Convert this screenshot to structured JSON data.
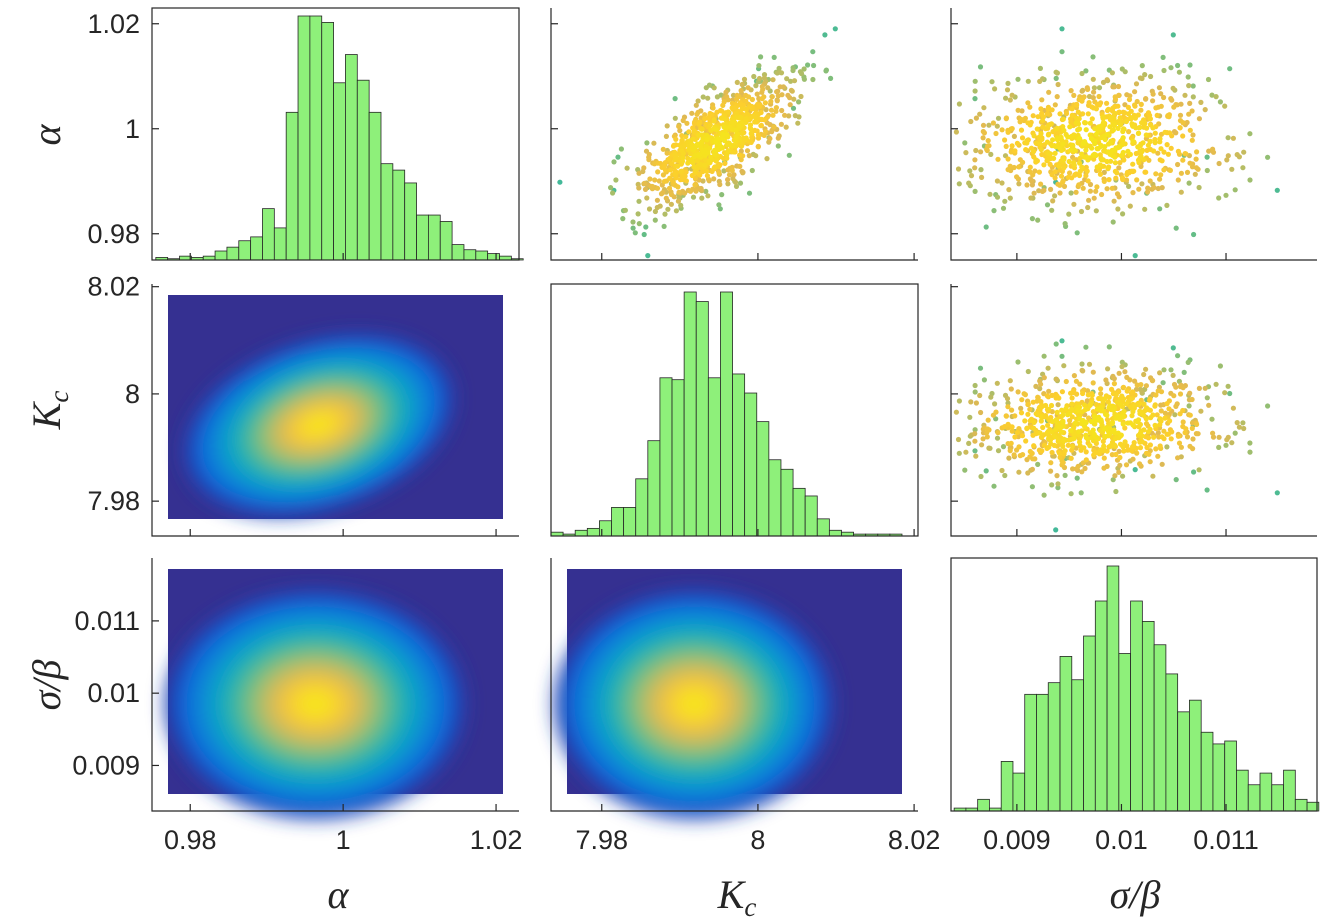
{
  "figure": {
    "type": "corner-plot",
    "description_of_layout": "3x3 matrix: histograms on diagonal, scatter above, density contours below"
  },
  "chart_data": {
    "type": "corner",
    "parameters": [
      {
        "key": "alpha",
        "label_main": "α",
        "label_sub": "",
        "range": [
          0.975,
          1.023
        ],
        "ticks": [
          0.98,
          1,
          1.02
        ],
        "tick_labels": [
          "0.98",
          "1",
          "1.02"
        ],
        "mean": 0.9975,
        "sd": 0.0062
      },
      {
        "key": "Kc",
        "label_main": "K",
        "label_sub": "c",
        "range": [
          7.9735,
          8.0205
        ],
        "ticks": [
          7.98,
          8,
          8.02
        ],
        "tick_labels": [
          "7.98",
          "8",
          "8.02"
        ],
        "mean": 7.9945,
        "sd": 0.0048
      },
      {
        "key": "sigma_beta",
        "label_main": "σ/β",
        "label_sub": "",
        "range": [
          0.00837,
          0.01187
        ],
        "ticks": [
          0.009,
          0.01,
          0.011
        ],
        "tick_labels": [
          "0.009",
          "0.01",
          "0.011"
        ],
        "mean": 0.00975,
        "sd": 0.00058
      }
    ],
    "histograms": {
      "alpha": {
        "bin_start": 0.9755,
        "bin_width": 0.00155,
        "counts": [
          2,
          1,
          3,
          2,
          3,
          7,
          10,
          15,
          18,
          40,
          25,
          115,
          190,
          190,
          185,
          138,
          160,
          140,
          115,
          75,
          70,
          60,
          35,
          35,
          30,
          12,
          8,
          7,
          5,
          3,
          1,
          1
        ]
      },
      "Kc": {
        "bin_start": 7.9735,
        "bin_width": 0.00155,
        "counts": [
          2,
          1,
          3,
          4,
          8,
          15,
          15,
          30,
          50,
          83,
          82,
          128,
          123,
          83,
          128,
          85,
          75,
          60,
          40,
          35,
          25,
          21,
          9,
          3,
          2,
          1,
          1,
          1,
          1
        ]
      },
      "sigma_beta": {
        "bin_start": 0.0084,
        "bin_width": 0.0001125,
        "counts": [
          1,
          1,
          4,
          1,
          17,
          13,
          40,
          40,
          44,
          53,
          45,
          60,
          72,
          84,
          54,
          72,
          65,
          57,
          47,
          34,
          38,
          27,
          23,
          24,
          14,
          9,
          13,
          9,
          14,
          4,
          3,
          2,
          2
        ]
      }
    },
    "scatter": {
      "n_points": 900,
      "seed": 7,
      "colormap": "parula (density-colored points)"
    },
    "density": {
      "colormap": "parula",
      "levels": 12
    }
  }
}
